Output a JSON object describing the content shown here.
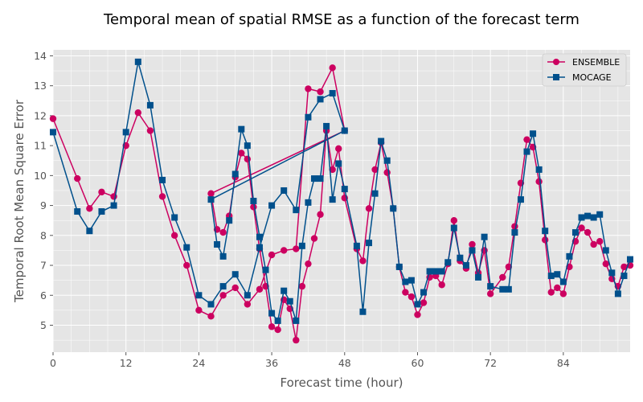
{
  "chart_data": {
    "type": "line",
    "title": "Temporal mean of spatial RMSE as a function of the forecast term",
    "xlabel": "Forecast time (hour)",
    "ylabel": "Temporal Root Mean Square Error",
    "xlim": [
      0,
      95
    ],
    "ylim": [
      4.1,
      14.2
    ],
    "xticks": [
      0,
      12,
      24,
      36,
      48,
      60,
      72,
      84
    ],
    "yticks": [
      5,
      6,
      7,
      8,
      9,
      10,
      11,
      12,
      13,
      14
    ],
    "grid": true,
    "legend_position": "top-right",
    "series": [
      {
        "name": "ENSEMBLE",
        "color": "#cc0060",
        "marker": "circle",
        "points": [
          [
            0,
            11.9
          ],
          [
            4,
            9.9
          ],
          [
            6,
            8.9
          ],
          [
            8,
            9.45
          ],
          [
            10,
            9.3
          ],
          [
            12,
            11.0
          ],
          [
            14,
            12.1
          ],
          [
            16,
            11.5
          ],
          [
            18,
            9.3
          ],
          [
            20,
            8.0
          ],
          [
            22,
            7.0
          ],
          [
            24,
            5.5
          ],
          [
            26,
            5.3
          ],
          [
            28,
            6.0
          ],
          [
            30,
            6.25
          ],
          [
            32,
            5.7
          ],
          [
            34,
            6.2
          ],
          [
            36,
            7.35
          ],
          [
            38,
            7.5
          ],
          [
            40,
            7.55
          ],
          [
            42,
            12.9
          ],
          [
            44,
            12.8
          ],
          [
            46,
            13.6
          ],
          [
            48,
            11.5
          ],
          [
            26,
            9.4
          ],
          [
            27,
            8.2
          ],
          [
            28,
            8.1
          ],
          [
            29,
            8.65
          ],
          [
            30,
            9.95
          ],
          [
            31,
            10.75
          ],
          [
            32,
            10.55
          ],
          [
            33,
            8.95
          ],
          [
            34,
            7.55
          ],
          [
            35,
            6.3
          ],
          [
            36,
            4.95
          ],
          [
            37,
            4.85
          ],
          [
            38,
            5.85
          ],
          [
            39,
            5.55
          ],
          [
            40,
            4.5
          ],
          [
            41,
            6.3
          ],
          [
            42,
            7.05
          ],
          [
            43,
            7.9
          ],
          [
            44,
            8.7
          ],
          [
            45,
            11.5
          ],
          [
            46,
            10.2
          ],
          [
            47,
            10.9
          ],
          [
            48,
            9.25
          ],
          [
            50,
            7.55
          ],
          [
            51,
            7.15
          ],
          [
            52,
            8.9
          ],
          [
            53,
            10.2
          ],
          [
            54,
            11.1
          ],
          [
            55,
            10.1
          ],
          [
            56,
            8.9
          ],
          [
            57,
            6.95
          ],
          [
            58,
            6.1
          ],
          [
            59,
            5.95
          ],
          [
            60,
            5.35
          ],
          [
            61,
            5.75
          ],
          [
            62,
            6.6
          ],
          [
            63,
            6.65
          ],
          [
            64,
            6.35
          ],
          [
            65,
            7.05
          ],
          [
            66,
            8.5
          ],
          [
            67,
            7.15
          ],
          [
            68,
            6.9
          ],
          [
            69,
            7.7
          ],
          [
            70,
            6.75
          ],
          [
            71,
            7.5
          ],
          [
            72,
            6.05
          ],
          [
            74,
            6.6
          ],
          [
            75,
            6.95
          ],
          [
            76,
            8.3
          ],
          [
            77,
            9.75
          ],
          [
            78,
            11.2
          ],
          [
            79,
            10.95
          ],
          [
            80,
            9.8
          ],
          [
            81,
            7.85
          ],
          [
            82,
            6.1
          ],
          [
            83,
            6.25
          ],
          [
            84,
            6.05
          ],
          [
            85,
            6.95
          ],
          [
            86,
            7.8
          ],
          [
            87,
            8.25
          ],
          [
            88,
            8.1
          ],
          [
            89,
            7.7
          ],
          [
            90,
            7.8
          ],
          [
            91,
            7.05
          ],
          [
            92,
            6.55
          ],
          [
            93,
            6.3
          ],
          [
            94,
            6.95
          ],
          [
            95,
            7.0
          ]
        ]
      },
      {
        "name": "MOCAGE",
        "color": "#00508c",
        "marker": "square",
        "points": [
          [
            0,
            11.45
          ],
          [
            4,
            8.8
          ],
          [
            6,
            8.15
          ],
          [
            8,
            8.8
          ],
          [
            10,
            9.0
          ],
          [
            12,
            11.45
          ],
          [
            14,
            13.8
          ],
          [
            16,
            12.35
          ],
          [
            18,
            9.85
          ],
          [
            20,
            8.6
          ],
          [
            22,
            7.6
          ],
          [
            24,
            6.0
          ],
          [
            26,
            5.7
          ],
          [
            28,
            6.3
          ],
          [
            30,
            6.7
          ],
          [
            32,
            6.0
          ],
          [
            34,
            7.6
          ],
          [
            36,
            9.0
          ],
          [
            38,
            9.5
          ],
          [
            40,
            8.85
          ],
          [
            42,
            11.95
          ],
          [
            44,
            12.55
          ],
          [
            46,
            12.75
          ],
          [
            48,
            11.5
          ],
          [
            26,
            9.2
          ],
          [
            27,
            7.7
          ],
          [
            28,
            7.3
          ],
          [
            29,
            8.5
          ],
          [
            30,
            10.05
          ],
          [
            31,
            11.55
          ],
          [
            32,
            11.0
          ],
          [
            33,
            9.15
          ],
          [
            34,
            7.95
          ],
          [
            35,
            6.85
          ],
          [
            36,
            5.4
          ],
          [
            37,
            5.15
          ],
          [
            38,
            6.15
          ],
          [
            39,
            5.8
          ],
          [
            40,
            5.15
          ],
          [
            41,
            7.65
          ],
          [
            42,
            9.1
          ],
          [
            43,
            9.9
          ],
          [
            44,
            9.9
          ],
          [
            45,
            11.65
          ],
          [
            46,
            9.2
          ],
          [
            47,
            10.4
          ],
          [
            48,
            9.55
          ],
          [
            50,
            7.65
          ],
          [
            51,
            5.45
          ],
          [
            52,
            7.75
          ],
          [
            53,
            9.4
          ],
          [
            54,
            11.15
          ],
          [
            55,
            10.5
          ],
          [
            56,
            8.9
          ],
          [
            57,
            6.95
          ],
          [
            58,
            6.45
          ],
          [
            59,
            6.5
          ],
          [
            60,
            5.7
          ],
          [
            61,
            6.1
          ],
          [
            62,
            6.8
          ],
          [
            63,
            6.8
          ],
          [
            64,
            6.8
          ],
          [
            65,
            7.1
          ],
          [
            66,
            8.25
          ],
          [
            67,
            7.25
          ],
          [
            68,
            7.0
          ],
          [
            69,
            7.5
          ],
          [
            70,
            6.6
          ],
          [
            71,
            7.95
          ],
          [
            72,
            6.3
          ],
          [
            74,
            6.2
          ],
          [
            75,
            6.2
          ],
          [
            76,
            8.1
          ],
          [
            77,
            9.2
          ],
          [
            78,
            10.8
          ],
          [
            79,
            11.4
          ],
          [
            80,
            10.2
          ],
          [
            81,
            8.15
          ],
          [
            82,
            6.65
          ],
          [
            83,
            6.7
          ],
          [
            84,
            6.45
          ],
          [
            85,
            7.3
          ],
          [
            86,
            8.1
          ],
          [
            87,
            8.6
          ],
          [
            88,
            8.65
          ],
          [
            89,
            8.6
          ],
          [
            90,
            8.7
          ],
          [
            91,
            7.5
          ],
          [
            92,
            6.75
          ],
          [
            93,
            6.05
          ],
          [
            94,
            6.65
          ],
          [
            95,
            7.2
          ]
        ]
      }
    ]
  }
}
